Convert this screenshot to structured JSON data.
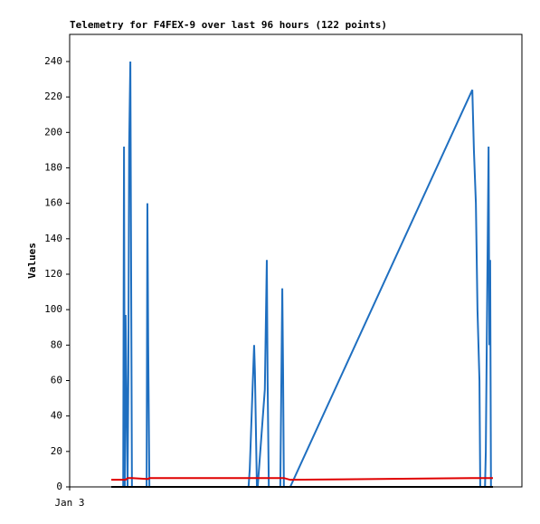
{
  "chart_data": {
    "type": "line",
    "title": "Telemetry for F4FEX-9 over last 96 hours (122 points)",
    "y_label": "Values",
    "x": [
      10.5,
      13.5,
      13.7,
      13.9,
      14.1,
      14.6,
      14.8,
      15.0,
      15.3,
      15.5,
      15.7,
      19.4,
      19.6,
      19.8,
      20.1,
      45.1,
      45.4,
      46.1,
      46.5,
      46.7,
      47.2,
      47.4,
      49.2,
      49.7,
      49.9,
      50.2,
      53.1,
      53.6,
      53.8,
      54.0,
      55.6,
      101.5,
      101.9,
      102.4,
      102.8,
      103.3,
      103.5,
      104.7,
      104.9,
      105.1,
      105.3,
      105.6,
      105.8,
      106.0,
      106.2,
      106.7
    ],
    "series": [
      {
        "color": "#1f6fc0",
        "values": [
          0,
          0,
          192,
          0,
          97,
          0,
          65,
          192,
          240,
          120,
          0,
          0,
          160,
          80,
          0,
          0,
          10,
          55,
          80,
          65,
          0,
          0,
          55,
          128,
          60,
          0,
          0,
          112,
          65,
          0,
          0,
          224,
          190,
          160,
          100,
          60,
          0,
          0,
          20,
          70,
          120,
          192,
          80,
          128,
          0,
          0
        ]
      },
      {
        "color": "#e00000",
        "values": [
          4,
          4,
          4,
          4,
          4,
          5,
          5,
          5,
          5,
          5,
          5,
          4.5,
          4.5,
          4.5,
          5,
          5,
          5,
          5,
          5,
          5,
          5,
          5,
          5,
          5,
          5,
          5,
          5,
          5,
          5,
          5,
          4,
          5,
          5,
          5,
          5,
          5,
          5,
          5,
          5,
          5,
          5,
          5,
          5,
          5,
          5,
          5
        ]
      },
      {
        "color": "#000000",
        "values": [
          0,
          0,
          0,
          0,
          0,
          0,
          0,
          0,
          0,
          0,
          0,
          0,
          0,
          0,
          0,
          0,
          0,
          0,
          0,
          0,
          0,
          0,
          0,
          0,
          0,
          0,
          0,
          0,
          0,
          0,
          0,
          0,
          0,
          0,
          0,
          0,
          0,
          0,
          0,
          0,
          0,
          0,
          0,
          0,
          0,
          0
        ]
      }
    ],
    "xlim": [
      0,
      114
    ],
    "xticks": [
      {
        "value": 0,
        "label": "Jan 3"
      }
    ],
    "ylim": [
      0,
      255.3
    ],
    "yticks": [
      0,
      20,
      40,
      60,
      80,
      100,
      120,
      140,
      160,
      180,
      200,
      220,
      240
    ],
    "grid": false
  }
}
